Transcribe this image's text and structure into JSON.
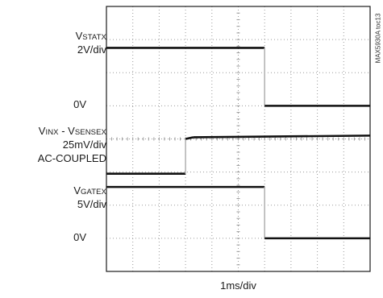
{
  "figure_id": "MAX5930A toc13",
  "chart_data": {
    "type": "line",
    "subtype": "oscilloscope-capture",
    "xlabel": "1ms/div",
    "divisions": {
      "x": 10,
      "y": 8
    },
    "grid": "dotted",
    "channels": [
      {
        "name_main": "V",
        "name_sub": "STATX",
        "scale": "2V/div",
        "zero_label": "0V",
        "zero_div": 5.0,
        "points": [
          [
            0,
            6.75
          ],
          [
            6.0,
            6.75
          ],
          [
            6.0,
            5.0
          ],
          [
            10,
            5.0
          ]
        ]
      },
      {
        "name_main": "V",
        "name_sub": "INX",
        "name_sep": " - ",
        "name2_main": "V",
        "name2_sub": "SENSEX",
        "scale": "25mV/div",
        "coupling": "AC-COUPLED",
        "points": [
          [
            0,
            2.95
          ],
          [
            3.0,
            2.95
          ],
          [
            3.0,
            4.0
          ],
          [
            3.3,
            4.05
          ],
          [
            10,
            4.1
          ]
        ]
      },
      {
        "name_main": "V",
        "name_sub": "GATEX",
        "scale": "5V/div",
        "zero_label": "0V",
        "zero_div": 1.0,
        "points": [
          [
            0,
            2.55
          ],
          [
            6.0,
            2.55
          ],
          [
            6.0,
            1.0
          ],
          [
            10,
            1.0
          ]
        ]
      }
    ]
  }
}
